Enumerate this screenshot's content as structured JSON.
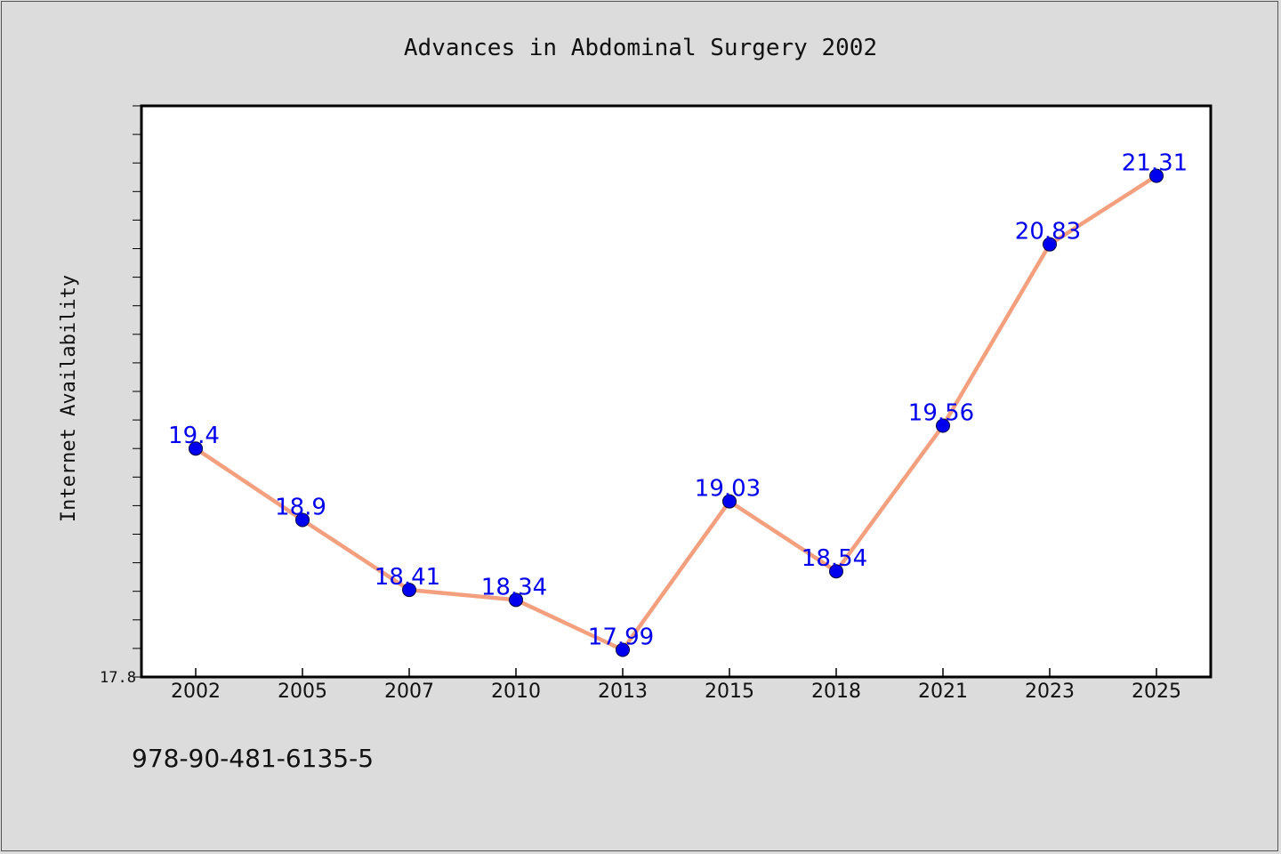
{
  "colors": {
    "background": "#dcdcdc",
    "plot_background": "#ffffff",
    "line": "#f4a07e",
    "marker": "#0000ee",
    "label": "#0000ee"
  },
  "footer_text": "978-90-481-6135-5",
  "y_min_label": "17.8",
  "chart_data": {
    "type": "line",
    "title": "Advances in Abdominal Surgery 2002",
    "xlabel": "",
    "ylabel": "Internet Availability",
    "categories": [
      "2002",
      "2005",
      "2007",
      "2010",
      "2013",
      "2015",
      "2018",
      "2021",
      "2023",
      "2025"
    ],
    "series": [
      {
        "values": [
          19.4,
          18.9,
          18.41,
          18.34,
          17.99,
          19.03,
          18.54,
          19.56,
          20.83,
          21.31
        ],
        "labels": [
          "19.4",
          "18.9",
          "18.41",
          "18.34",
          "17.99",
          "19.03",
          "18.54",
          "19.56",
          "20.83",
          "21.31"
        ]
      }
    ],
    "ylim": [
      17.8,
      21.8
    ],
    "grid": false,
    "legend": "none"
  }
}
